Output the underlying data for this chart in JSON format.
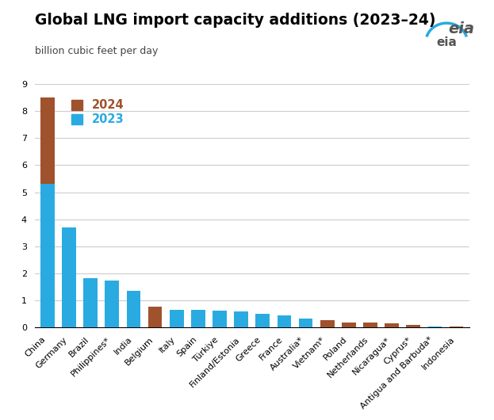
{
  "title": "Global LNG import capacity additions (2023–24)",
  "ylabel": "billion cubic feet per day",
  "categories": [
    "China",
    "Germany",
    "Brazil",
    "Philippines*",
    "India",
    "Belgium",
    "Italy",
    "Spain",
    "Türkiye",
    "Finland/Estonia",
    "Greece",
    "France",
    "Australia*",
    "Vietnam*",
    "Poland",
    "Netherlands",
    "Nicaragua*",
    "Cyprus*",
    "Antigua and Barbuda*",
    "Indonesia"
  ],
  "values_2023": [
    5.3,
    3.7,
    1.82,
    1.73,
    1.35,
    0.0,
    0.65,
    0.65,
    0.62,
    0.6,
    0.5,
    0.45,
    0.33,
    0.0,
    0.0,
    0.0,
    0.0,
    0.0,
    0.05,
    0.0
  ],
  "values_2024": [
    3.2,
    0.0,
    0.0,
    0.0,
    0.0,
    0.76,
    0.0,
    0.0,
    0.0,
    0.0,
    0.0,
    0.0,
    0.0,
    0.27,
    0.2,
    0.18,
    0.17,
    0.1,
    0.0,
    0.05
  ],
  "color_2023": "#29ABE2",
  "color_2024": "#A0522D",
  "ylim": [
    0,
    9
  ],
  "yticks": [
    0,
    1,
    2,
    3,
    4,
    5,
    6,
    7,
    8,
    9
  ],
  "legend_2024_label": "2024",
  "legend_2023_label": "2023",
  "bg_color": "#FFFFFF",
  "grid_color": "#CCCCCC",
  "title_fontsize": 13.5,
  "subtitle_fontsize": 9,
  "tick_fontsize": 8
}
